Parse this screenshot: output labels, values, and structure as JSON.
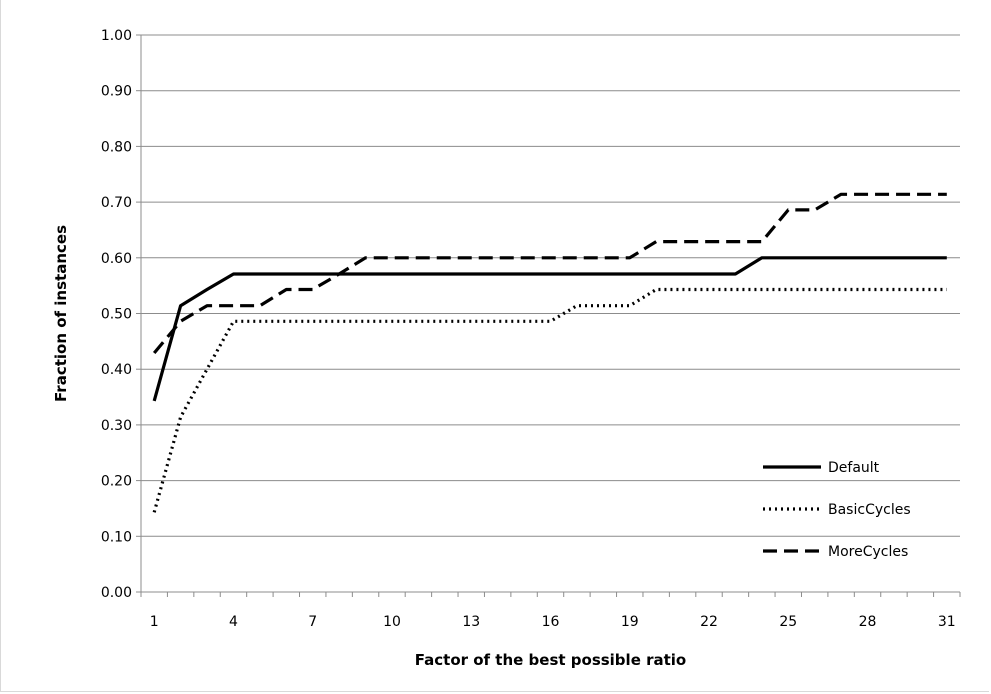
{
  "chart_data": {
    "type": "line",
    "title": "",
    "xlabel": "Factor of the best possible ratio",
    "ylabel": "Fraction of instances",
    "xlim": [
      1,
      31
    ],
    "ylim": [
      0,
      1
    ],
    "x_ticks": [
      1,
      4,
      7,
      10,
      13,
      16,
      19,
      22,
      25,
      28,
      31
    ],
    "y_ticks": [
      "0.00",
      "0.10",
      "0.20",
      "0.30",
      "0.40",
      "0.50",
      "0.60",
      "0.70",
      "0.80",
      "0.90",
      "1.00"
    ],
    "grid": true,
    "legend_position": "bottom-right",
    "x": [
      1,
      2,
      3,
      4,
      5,
      6,
      7,
      8,
      9,
      10,
      11,
      12,
      13,
      14,
      15,
      16,
      17,
      18,
      19,
      20,
      21,
      22,
      23,
      24,
      25,
      26,
      27,
      28,
      29,
      30,
      31
    ],
    "series": [
      {
        "name": "Default",
        "style": "solid",
        "values": [
          0.343,
          0.514,
          0.543,
          0.571,
          0.571,
          0.571,
          0.571,
          0.571,
          0.571,
          0.571,
          0.571,
          0.571,
          0.571,
          0.571,
          0.571,
          0.571,
          0.571,
          0.571,
          0.571,
          0.571,
          0.571,
          0.571,
          0.571,
          0.6,
          0.6,
          0.6,
          0.6,
          0.6,
          0.6,
          0.6,
          0.6
        ]
      },
      {
        "name": "BasicCycles",
        "style": "dotted",
        "values": [
          0.143,
          0.314,
          0.4,
          0.486,
          0.486,
          0.486,
          0.486,
          0.486,
          0.486,
          0.486,
          0.486,
          0.486,
          0.486,
          0.486,
          0.486,
          0.486,
          0.514,
          0.514,
          0.514,
          0.543,
          0.543,
          0.543,
          0.543,
          0.543,
          0.543,
          0.543,
          0.543,
          0.543,
          0.543,
          0.543,
          0.543
        ]
      },
      {
        "name": "MoreCycles",
        "style": "dashed",
        "values": [
          0.429,
          0.486,
          0.514,
          0.514,
          0.514,
          0.543,
          0.543,
          0.571,
          0.6,
          0.6,
          0.6,
          0.6,
          0.6,
          0.6,
          0.6,
          0.6,
          0.6,
          0.6,
          0.6,
          0.629,
          0.629,
          0.629,
          0.629,
          0.629,
          0.686,
          0.686,
          0.714,
          0.714,
          0.714,
          0.714,
          0.714
        ]
      }
    ]
  }
}
